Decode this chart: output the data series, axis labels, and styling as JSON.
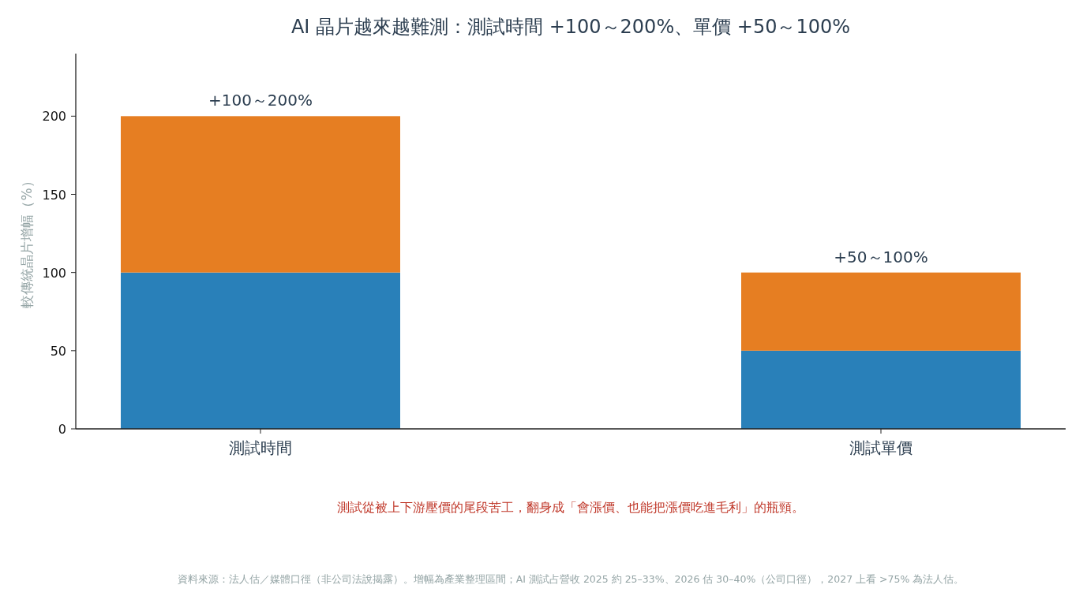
{
  "chart_data": {
    "type": "bar",
    "title": "AI 晶片越來越難測：測試時間 +100～200%、單價 +50～100%",
    "ylabel": "較傳統晶片增幅（%）",
    "categories": [
      "測試時間",
      "測試單價"
    ],
    "stacked": true,
    "series": [
      {
        "color": "#2980b9",
        "values": [
          100,
          50
        ]
      },
      {
        "color": "#e67e22",
        "values": [
          100,
          50
        ]
      }
    ],
    "ylim": [
      0,
      240
    ],
    "yticks": [
      0,
      50,
      100,
      150,
      200
    ],
    "totals": [
      "+100～200%",
      "+50～100%"
    ],
    "annotations": [
      "測試從被上下游壓價的尾段苦工，翻身成「會漲價、也能把漲價吃進毛利」的瓶頸。",
      "資料來源：法人估／媒體口徑（非公司法說揭露）。增幅為產業整理區間；AI 測試占營收 2025 約 25–33%、2026 估 30–40%（公司口徑），2027 上看 >75% 為法人估。"
    ]
  }
}
